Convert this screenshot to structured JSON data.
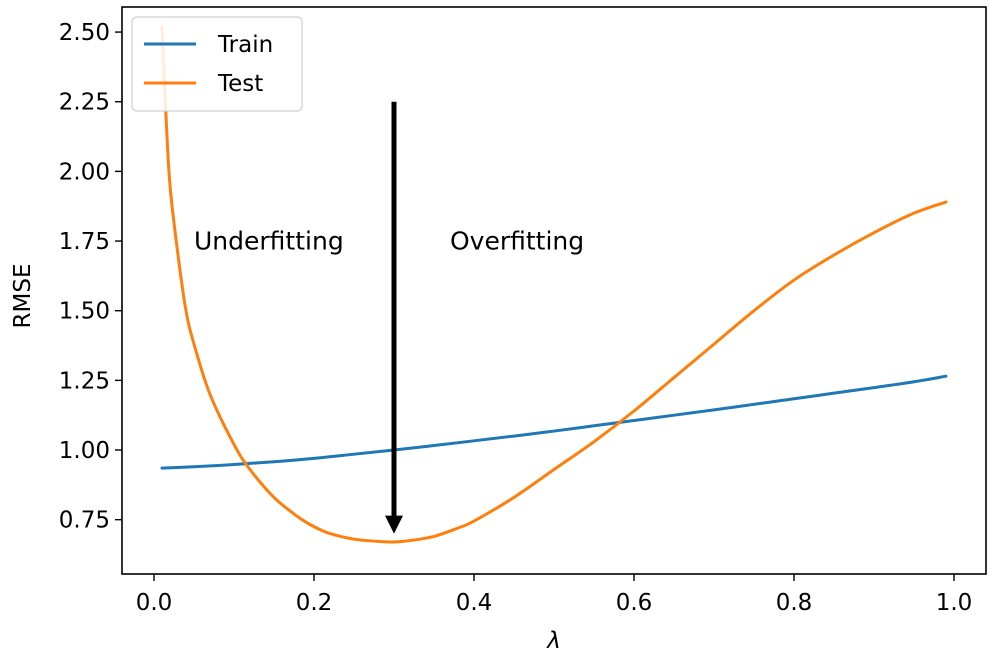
{
  "chart_data": {
    "type": "line",
    "xlabel": "λ",
    "ylabel": "RMSE",
    "xlim": [
      -0.04,
      1.04
    ],
    "ylim": [
      0.555,
      2.59
    ],
    "x_ticks": [
      0.0,
      0.2,
      0.4,
      0.6,
      0.8,
      1.0
    ],
    "x_tick_labels": [
      "0.0",
      "0.2",
      "0.4",
      "0.6",
      "0.8",
      "1.0"
    ],
    "y_ticks": [
      0.75,
      1.0,
      1.25,
      1.5,
      1.75,
      2.0,
      2.25,
      2.5
    ],
    "y_tick_labels": [
      "0.75",
      "1.00",
      "1.25",
      "1.50",
      "1.75",
      "2.00",
      "2.25",
      "2.50"
    ],
    "grid": false,
    "legend_position": "top-left",
    "series": [
      {
        "name": "Train",
        "color": "#1f77b4",
        "x": [
          0.01,
          0.05,
          0.1,
          0.15,
          0.2,
          0.25,
          0.3,
          0.35,
          0.4,
          0.45,
          0.5,
          0.55,
          0.6,
          0.65,
          0.7,
          0.75,
          0.8,
          0.85,
          0.9,
          0.95,
          0.99
        ],
        "y": [
          0.935,
          0.94,
          0.948,
          0.958,
          0.97,
          0.985,
          1.0,
          1.016,
          1.033,
          1.05,
          1.068,
          1.087,
          1.106,
          1.125,
          1.144,
          1.164,
          1.184,
          1.204,
          1.224,
          1.245,
          1.265
        ]
      },
      {
        "name": "Test",
        "color": "#ff7f0e",
        "x": [
          0.01,
          0.015,
          0.02,
          0.03,
          0.04,
          0.05,
          0.07,
          0.1,
          0.12,
          0.15,
          0.18,
          0.2,
          0.22,
          0.25,
          0.28,
          0.3,
          0.32,
          0.35,
          0.38,
          0.4,
          0.45,
          0.5,
          0.55,
          0.6,
          0.65,
          0.7,
          0.75,
          0.8,
          0.85,
          0.9,
          0.95,
          0.99
        ],
        "y": [
          2.52,
          2.2,
          1.95,
          1.7,
          1.5,
          1.38,
          1.2,
          1.02,
          0.93,
          0.83,
          0.76,
          0.725,
          0.7,
          0.68,
          0.672,
          0.67,
          0.675,
          0.69,
          0.72,
          0.745,
          0.83,
          0.93,
          1.03,
          1.14,
          1.26,
          1.38,
          1.5,
          1.61,
          1.7,
          1.78,
          1.85,
          1.89
        ]
      }
    ],
    "annotations": [
      {
        "text": "Underfitting",
        "x": 0.05,
        "y": 1.72
      },
      {
        "text": "Overfitting",
        "x": 0.37,
        "y": 1.72
      }
    ],
    "arrow": {
      "x": 0.3,
      "y_from": 2.25,
      "y_to": 0.7,
      "color": "#000000"
    }
  }
}
